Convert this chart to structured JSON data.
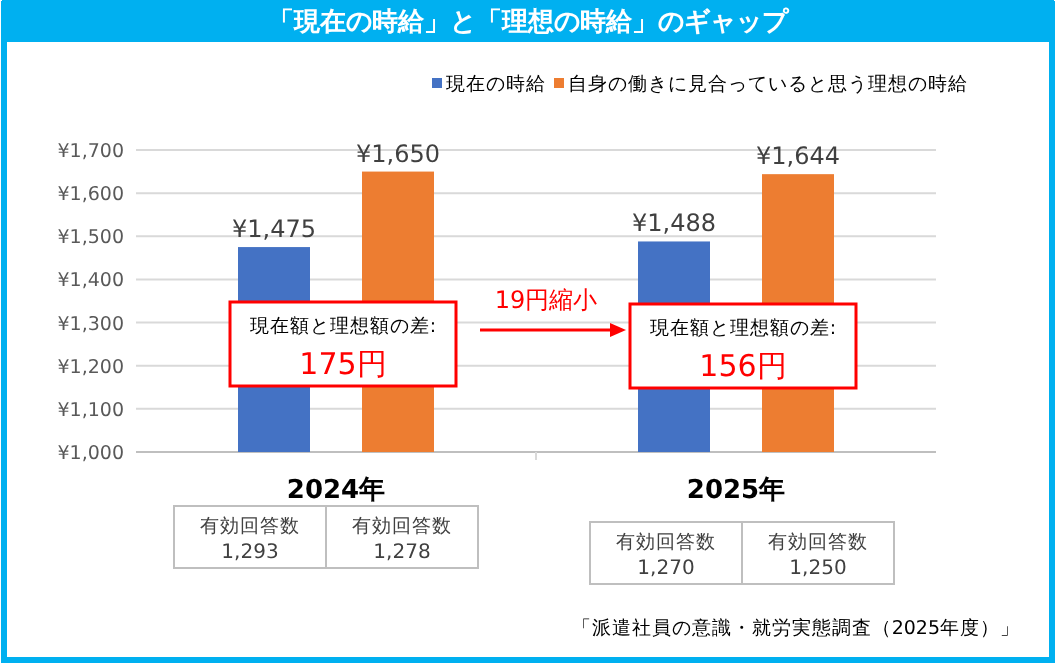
{
  "chart_data": {
    "type": "bar",
    "title": "「現在の時給」と「理想の時給」のギャップ",
    "categories": [
      "2024年",
      "2025年"
    ],
    "series": [
      {
        "name": "現在の時給",
        "color": "#4472c4",
        "values": [
          1475,
          1488
        ],
        "value_labels": [
          "¥1,475",
          "¥1,488"
        ]
      },
      {
        "name": "自身の働きに見合っていると思う理想の時給",
        "color": "#ed7d31",
        "values": [
          1650,
          1644
        ],
        "value_labels": [
          "¥1,650",
          "¥1,644"
        ]
      }
    ],
    "ylim": [
      1000,
      1700
    ],
    "yticks": [
      {
        "value": 1000,
        "label": "¥1,000"
      },
      {
        "value": 1100,
        "label": "¥1,100"
      },
      {
        "value": 1200,
        "label": "¥1,200"
      },
      {
        "value": 1300,
        "label": "¥1,300"
      },
      {
        "value": 1400,
        "label": "¥1,400"
      },
      {
        "value": 1500,
        "label": "¥1,500"
      },
      {
        "value": 1600,
        "label": "¥1,600"
      },
      {
        "value": 1700,
        "label": "¥1,700"
      }
    ],
    "grid": "y",
    "legend": "top right",
    "annotations": [
      "現在額と理想額の差:",
      "175円",
      "19円縮小",
      "現在額と理想額の差:",
      "156円",
      "有効回答数",
      "1,293",
      "有効回答数",
      "1,278",
      "有効回答数",
      "1,270",
      "有効回答数",
      "1,250",
      "「派遣社員の意識・就労実態調査（2025年度）」"
    ]
  }
}
